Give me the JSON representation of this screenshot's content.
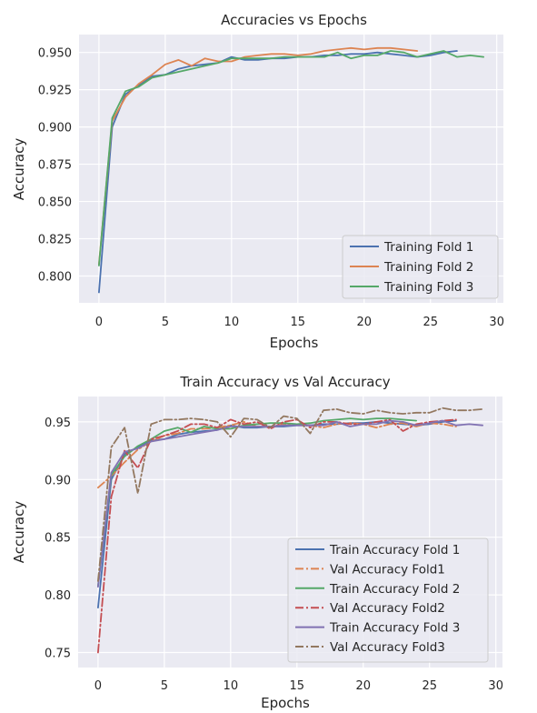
{
  "chart_data": [
    {
      "type": "line",
      "title": "Accuracies vs Epochs",
      "xlabel": "Epochs",
      "ylabel": "Accuracy",
      "xlim": [
        -1.5,
        30.5
      ],
      "ylim": [
        0.782,
        0.962
      ],
      "xticks": [
        "0",
        "5",
        "10",
        "15",
        "20",
        "25",
        "30"
      ],
      "yticks": [
        "0.800",
        "0.825",
        "0.850",
        "0.875",
        "0.900",
        "0.925",
        "0.950"
      ],
      "grid": true,
      "legend_position": "lower-right",
      "series": [
        {
          "name": "Training Fold 1",
          "color": "#4c72b0",
          "x": [
            0,
            1,
            2,
            3,
            4,
            5,
            6,
            7,
            8,
            9,
            10,
            11,
            12,
            13,
            14,
            15,
            16,
            17,
            18,
            19,
            20,
            21,
            22,
            23,
            24,
            25,
            26,
            27
          ],
          "y": [
            0.789,
            0.9,
            0.922,
            0.928,
            0.934,
            0.935,
            0.939,
            0.941,
            0.942,
            0.943,
            0.947,
            0.945,
            0.945,
            0.946,
            0.946,
            0.947,
            0.947,
            0.948,
            0.948,
            0.949,
            0.949,
            0.95,
            0.949,
            0.948,
            0.947,
            0.948,
            0.95,
            0.951
          ]
        },
        {
          "name": "Training Fold 2",
          "color": "#dd8452",
          "x": [
            0,
            1,
            2,
            3,
            4,
            5,
            6,
            7,
            8,
            9,
            10,
            11,
            12,
            13,
            14,
            15,
            16,
            17,
            18,
            19,
            20,
            21,
            22,
            23,
            24
          ],
          "y": [
            0.808,
            0.904,
            0.92,
            0.929,
            0.935,
            0.942,
            0.945,
            0.941,
            0.946,
            0.944,
            0.944,
            0.947,
            0.948,
            0.949,
            0.949,
            0.948,
            0.949,
            0.951,
            0.952,
            0.953,
            0.952,
            0.953,
            0.953,
            0.952,
            0.951
          ]
        },
        {
          "name": "Training Fold 3",
          "color": "#55a868",
          "x": [
            0,
            1,
            2,
            3,
            4,
            5,
            6,
            7,
            8,
            9,
            10,
            11,
            12,
            13,
            14,
            15,
            16,
            17,
            18,
            19,
            20,
            21,
            22,
            23,
            24,
            25,
            26,
            27,
            28,
            29
          ],
          "y": [
            0.807,
            0.906,
            0.924,
            0.927,
            0.933,
            0.935,
            0.937,
            0.939,
            0.941,
            0.943,
            0.946,
            0.946,
            0.946,
            0.946,
            0.947,
            0.947,
            0.947,
            0.947,
            0.95,
            0.946,
            0.948,
            0.948,
            0.951,
            0.95,
            0.947,
            0.949,
            0.951,
            0.947,
            0.948,
            0.947
          ]
        }
      ]
    },
    {
      "type": "line",
      "title": "Train Accuracy vs Val Accuracy",
      "xlabel": "Epochs",
      "ylabel": "Accuracy",
      "xlim": [
        -1.5,
        30.5
      ],
      "ylim": [
        0.737,
        0.972
      ],
      "xticks": [
        "0",
        "5",
        "10",
        "15",
        "20",
        "25",
        "30"
      ],
      "yticks": [
        "0.75",
        "0.80",
        "0.85",
        "0.90",
        "0.95"
      ],
      "grid": true,
      "legend_position": "lower-right",
      "series": [
        {
          "name": "Train Accuracy Fold 1",
          "color": "#4c72b0",
          "dash": "solid",
          "x": [
            0,
            1,
            2,
            3,
            4,
            5,
            6,
            7,
            8,
            9,
            10,
            11,
            12,
            13,
            14,
            15,
            16,
            17,
            18,
            19,
            20,
            21,
            22,
            23,
            24,
            25,
            26,
            27
          ],
          "y": [
            0.789,
            0.9,
            0.922,
            0.928,
            0.934,
            0.935,
            0.939,
            0.941,
            0.942,
            0.943,
            0.947,
            0.945,
            0.945,
            0.946,
            0.946,
            0.947,
            0.947,
            0.948,
            0.948,
            0.949,
            0.949,
            0.95,
            0.949,
            0.948,
            0.947,
            0.948,
            0.95,
            0.951
          ]
        },
        {
          "name": "Val Accuracy Fold1",
          "color": "#dd8452",
          "dash": "dashdot",
          "x": [
            0,
            1,
            2,
            3,
            4,
            5,
            6,
            7,
            8,
            9,
            10,
            11,
            12,
            13,
            14,
            15,
            16,
            17,
            18,
            19,
            20,
            21,
            22,
            23,
            24,
            25,
            26,
            27
          ],
          "y": [
            0.893,
            0.903,
            0.915,
            0.926,
            0.933,
            0.938,
            0.94,
            0.944,
            0.944,
            0.945,
            0.947,
            0.95,
            0.946,
            0.946,
            0.948,
            0.948,
            0.947,
            0.945,
            0.948,
            0.949,
            0.948,
            0.945,
            0.948,
            0.949,
            0.946,
            0.949,
            0.948,
            0.946
          ]
        },
        {
          "name": "Train Accuracy Fold 2",
          "color": "#55a868",
          "dash": "solid",
          "x": [
            0,
            1,
            2,
            3,
            4,
            5,
            6,
            7,
            8,
            9,
            10,
            11,
            12,
            13,
            14,
            15,
            16,
            17,
            18,
            19,
            20,
            21,
            22,
            23,
            24
          ],
          "y": [
            0.808,
            0.904,
            0.92,
            0.929,
            0.935,
            0.942,
            0.945,
            0.941,
            0.946,
            0.944,
            0.944,
            0.947,
            0.948,
            0.949,
            0.949,
            0.948,
            0.949,
            0.951,
            0.952,
            0.953,
            0.952,
            0.953,
            0.953,
            0.952,
            0.951
          ]
        },
        {
          "name": "Val Accuracy Fold2",
          "color": "#c44e52",
          "dash": "dashdot",
          "x": [
            0,
            1,
            2,
            3,
            4,
            5,
            6,
            7,
            8,
            9,
            10,
            11,
            12,
            13,
            14,
            15,
            16,
            17,
            18,
            19,
            20,
            21,
            22,
            23,
            24,
            25,
            26,
            27
          ],
          "y": [
            0.75,
            0.885,
            0.925,
            0.91,
            0.935,
            0.938,
            0.942,
            0.948,
            0.948,
            0.945,
            0.952,
            0.948,
            0.95,
            0.944,
            0.95,
            0.952,
            0.945,
            0.95,
            0.95,
            0.948,
            0.948,
            0.95,
            0.952,
            0.942,
            0.948,
            0.95,
            0.951,
            0.952
          ]
        },
        {
          "name": "Train Accuracy Fold 3",
          "color": "#8172b2",
          "dash": "solid",
          "x": [
            0,
            1,
            2,
            3,
            4,
            5,
            6,
            7,
            8,
            9,
            10,
            11,
            12,
            13,
            14,
            15,
            16,
            17,
            18,
            19,
            20,
            21,
            22,
            23,
            24,
            25,
            26,
            27,
            28,
            29
          ],
          "y": [
            0.807,
            0.906,
            0.924,
            0.927,
            0.933,
            0.935,
            0.937,
            0.939,
            0.941,
            0.943,
            0.946,
            0.946,
            0.946,
            0.946,
            0.947,
            0.947,
            0.947,
            0.947,
            0.95,
            0.946,
            0.948,
            0.948,
            0.951,
            0.95,
            0.947,
            0.949,
            0.951,
            0.947,
            0.948,
            0.947
          ]
        },
        {
          "name": "Val Accuracy Fold3",
          "color": "#937860",
          "dash": "dashdot",
          "x": [
            0,
            1,
            2,
            3,
            4,
            5,
            6,
            7,
            8,
            9,
            10,
            11,
            12,
            13,
            14,
            15,
            16,
            17,
            18,
            19,
            20,
            21,
            22,
            23,
            24,
            25,
            26,
            27,
            28,
            29
          ],
          "y": [
            0.812,
            0.928,
            0.945,
            0.888,
            0.948,
            0.952,
            0.952,
            0.953,
            0.952,
            0.95,
            0.937,
            0.953,
            0.952,
            0.945,
            0.955,
            0.953,
            0.94,
            0.96,
            0.961,
            0.958,
            0.957,
            0.96,
            0.958,
            0.957,
            0.958,
            0.958,
            0.962,
            0.96,
            0.96,
            0.961
          ]
        }
      ]
    }
  ]
}
